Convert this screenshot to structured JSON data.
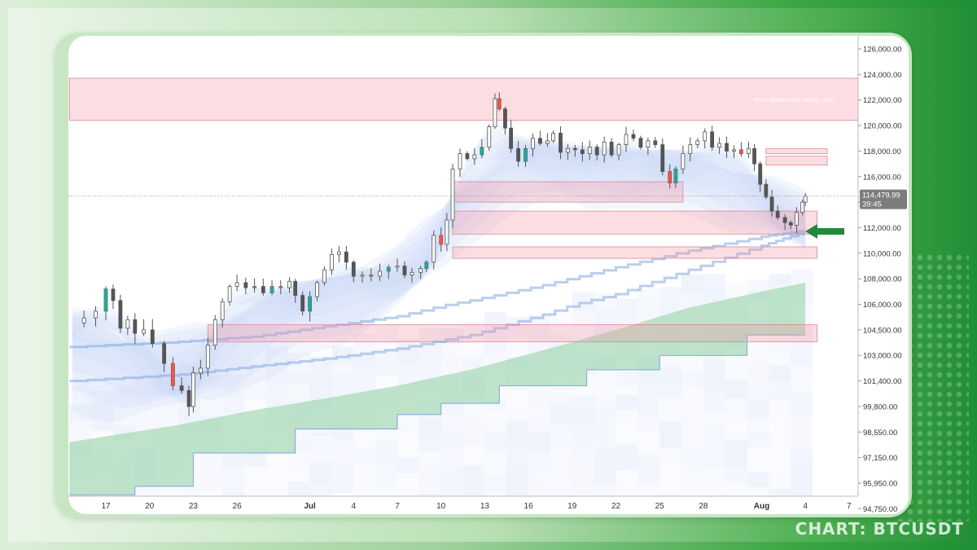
{
  "caption": "CHART: BTCUSDT",
  "colors": {
    "up": "#26a69a",
    "down": "#ef5350",
    "zone_fill": "rgba(244,143,158,0.30)",
    "zone_stroke": "#d98a95",
    "arrow": "#1e8a3a",
    "ribbon": "#c8d4f4",
    "lower_band": "#7fa7e0"
  },
  "chart_data": {
    "type": "candlestick",
    "symbol": "BTCUSDT",
    "ylim": [
      93800,
      127000
    ],
    "y_ticks": [
      "126,000.00",
      "124,000.00",
      "122,000.00",
      "120,000.00",
      "118,000.00",
      "116,000.00",
      "114,000.00",
      "112,000.00",
      "110,000.00",
      "108,000.00",
      "106,000.00",
      "104,500.00",
      "103,000.00",
      "101,400.00",
      "99,800.00",
      "98,550.00",
      "97,150.00",
      "95,950.00",
      "94,750.00"
    ],
    "x_ticks": [
      {
        "label": "17",
        "day": 0
      },
      {
        "label": "20",
        "day": 3
      },
      {
        "label": "23",
        "day": 6
      },
      {
        "label": "26",
        "day": 9
      },
      {
        "label": "Jul",
        "day": 14,
        "bold": true
      },
      {
        "label": "4",
        "day": 17
      },
      {
        "label": "7",
        "day": 20
      },
      {
        "label": "10",
        "day": 23
      },
      {
        "label": "13",
        "day": 26
      },
      {
        "label": "16",
        "day": 29
      },
      {
        "label": "19",
        "day": 32
      },
      {
        "label": "22",
        "day": 35
      },
      {
        "label": "25",
        "day": 38
      },
      {
        "label": "28",
        "day": 41
      },
      {
        "label": "Aug",
        "day": 45,
        "bold": true
      },
      {
        "label": "4",
        "day": 48
      },
      {
        "label": "7",
        "day": 51
      }
    ],
    "x_range_days": [
      -2.5,
      52.5
    ],
    "current_price": "114,479.99",
    "countdown": "39:45",
    "current_price_value": 114480,
    "close_path": [
      [
        -2.3,
        104900
      ],
      [
        -1.5,
        105200
      ],
      [
        -0.7,
        105600
      ],
      [
        0,
        107200
      ],
      [
        0.5,
        106300
      ],
      [
        1,
        104600
      ],
      [
        1.5,
        105100
      ],
      [
        2,
        104300
      ],
      [
        2.6,
        104500
      ],
      [
        3.2,
        103700
      ],
      [
        4,
        102500
      ],
      [
        4.6,
        101100
      ],
      [
        5.2,
        100800
      ],
      [
        5.7,
        99800
      ],
      [
        6,
        101900
      ],
      [
        6.5,
        102200
      ],
      [
        7,
        103600
      ],
      [
        7.5,
        105100
      ],
      [
        8,
        106200
      ],
      [
        8.5,
        107400
      ],
      [
        9,
        107700
      ],
      [
        9.6,
        107300
      ],
      [
        10.2,
        107400
      ],
      [
        10.8,
        106900
      ],
      [
        11.4,
        107400
      ],
      [
        12,
        107300
      ],
      [
        12.6,
        107800
      ],
      [
        13,
        106700
      ],
      [
        13.5,
        105600
      ],
      [
        14,
        106600
      ],
      [
        14.5,
        107700
      ],
      [
        15,
        108700
      ],
      [
        15.5,
        109900
      ],
      [
        16,
        110100
      ],
      [
        16.5,
        109300
      ],
      [
        17,
        108200
      ],
      [
        17.6,
        108300
      ],
      [
        18.2,
        108200
      ],
      [
        18.8,
        108600
      ],
      [
        19.4,
        108900
      ],
      [
        20,
        109000
      ],
      [
        20.5,
        108300
      ],
      [
        21,
        108500
      ],
      [
        21.6,
        108800
      ],
      [
        22,
        109300
      ],
      [
        22.5,
        111400
      ],
      [
        23,
        110700
      ],
      [
        23.4,
        112600
      ],
      [
        23.8,
        116600
      ],
      [
        24.3,
        117800
      ],
      [
        24.8,
        117400
      ],
      [
        25.3,
        117700
      ],
      [
        25.8,
        118300
      ],
      [
        26.3,
        119900
      ],
      [
        26.7,
        122100
      ],
      [
        27,
        121300
      ],
      [
        27.4,
        119800
      ],
      [
        27.8,
        118200
      ],
      [
        28.3,
        117200
      ],
      [
        28.8,
        118200
      ],
      [
        29.3,
        119000
      ],
      [
        29.8,
        118600
      ],
      [
        30.3,
        118800
      ],
      [
        30.7,
        119400
      ],
      [
        31.2,
        117900
      ],
      [
        31.7,
        118200
      ],
      [
        32.2,
        118100
      ],
      [
        32.7,
        117800
      ],
      [
        33.2,
        118300
      ],
      [
        33.7,
        117700
      ],
      [
        34.2,
        118700
      ],
      [
        34.7,
        117700
      ],
      [
        35.2,
        118500
      ],
      [
        35.7,
        119300
      ],
      [
        36.2,
        119000
      ],
      [
        36.7,
        118300
      ],
      [
        37.2,
        118800
      ],
      [
        37.7,
        118500
      ],
      [
        38.2,
        116400
      ],
      [
        38.7,
        115500
      ],
      [
        39.1,
        116600
      ],
      [
        39.6,
        117800
      ],
      [
        40.1,
        118500
      ],
      [
        40.6,
        118800
      ],
      [
        41.1,
        119500
      ],
      [
        41.6,
        118300
      ],
      [
        42.1,
        118600
      ],
      [
        42.6,
        118000
      ],
      [
        43.1,
        118100
      ],
      [
        43.6,
        117800
      ],
      [
        44.1,
        118200
      ],
      [
        44.5,
        117000
      ],
      [
        44.9,
        115400
      ],
      [
        45.3,
        114400
      ],
      [
        45.7,
        113300
      ],
      [
        46.1,
        112800
      ],
      [
        46.6,
        112400
      ],
      [
        47,
        112200
      ],
      [
        47.4,
        113200
      ],
      [
        47.8,
        114000
      ],
      [
        48,
        114480
      ]
    ],
    "zones": [
      {
        "name": "FPLP-Model Profit-Taking Level",
        "low": 120400,
        "high": 123700,
        "from_day": -2.5,
        "to_day": 52.5
      },
      {
        "name": "",
        "low": 117800,
        "high": 118200,
        "from_day": 45.3,
        "to_day": 49.5
      },
      {
        "name": "",
        "low": 116900,
        "high": 117600,
        "from_day": 45.3,
        "to_day": 49.5
      },
      {
        "name": "",
        "low": 114000,
        "high": 115600,
        "from_day": 23.8,
        "to_day": 39.6
      },
      {
        "name": "",
        "low": 111500,
        "high": 113300,
        "from_day": 23.8,
        "to_day": 48.8
      },
      {
        "name": "",
        "low": 109600,
        "high": 110500,
        "from_day": 23.8,
        "to_day": 48.8
      },
      {
        "name": "",
        "low": 103800,
        "high": 104800,
        "from_day": 7,
        "to_day": 48.8
      }
    ],
    "bands": {
      "lower_band": [
        [
          -2.5,
          103500
        ],
        [
          5,
          103800
        ],
        [
          10,
          104100
        ],
        [
          15,
          104700
        ],
        [
          20,
          105300
        ],
        [
          25,
          106300
        ],
        [
          30,
          107500
        ],
        [
          35,
          108900
        ],
        [
          40,
          110200
        ],
        [
          45,
          111300
        ],
        [
          48,
          111800
        ]
      ],
      "lower_band_2": [
        [
          -2.5,
          101400
        ],
        [
          5,
          101800
        ],
        [
          10,
          102300
        ],
        [
          15,
          102800
        ],
        [
          20,
          103400
        ],
        [
          25,
          104200
        ],
        [
          30,
          105400
        ],
        [
          35,
          106800
        ],
        [
          40,
          108700
        ],
        [
          45,
          110600
        ],
        [
          48,
          111700
        ]
      ],
      "step_support": [
        [
          -2.5,
          95400
        ],
        [
          2,
          95400
        ],
        [
          2,
          95800
        ],
        [
          6,
          95800
        ],
        [
          6,
          97400
        ],
        [
          13,
          97400
        ],
        [
          13,
          98700
        ],
        [
          20,
          98700
        ],
        [
          20,
          99400
        ],
        [
          23,
          99400
        ],
        [
          23,
          100000
        ],
        [
          27,
          100000
        ],
        [
          27,
          101100
        ],
        [
          33,
          101100
        ],
        [
          33,
          102100
        ],
        [
          38,
          102100
        ],
        [
          38,
          103000
        ],
        [
          44,
          103000
        ],
        [
          44,
          104200
        ],
        [
          48,
          104200
        ]
      ],
      "green_area_top": [
        [
          -2.5,
          98000
        ],
        [
          5,
          98900
        ],
        [
          10,
          99600
        ],
        [
          15,
          100300
        ],
        [
          20,
          101100
        ],
        [
          25,
          102100
        ],
        [
          30,
          103300
        ],
        [
          35,
          104500
        ],
        [
          40,
          105800
        ],
        [
          45,
          107000
        ],
        [
          48,
          107700
        ]
      ]
    }
  }
}
